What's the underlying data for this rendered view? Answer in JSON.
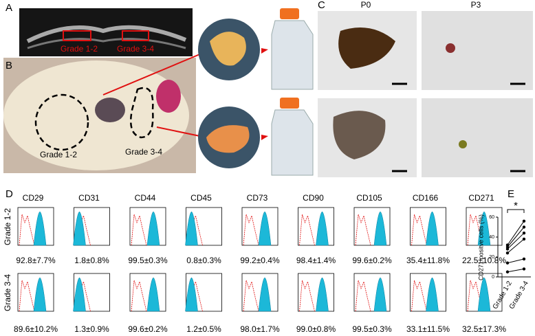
{
  "panel_a": {
    "letter": "A",
    "labels": [
      "Grade 1-2",
      "Grade 3-4"
    ]
  },
  "panel_b": {
    "letter": "B",
    "labels": [
      "Grade 1-2",
      "Grade 3-4"
    ]
  },
  "panel_c": {
    "letter": "C",
    "columns": [
      "P0",
      "P3"
    ]
  },
  "panel_d": {
    "letter": "D",
    "markers": [
      "CD29",
      "CD31",
      "CD44",
      "CD45",
      "CD73",
      "CD90",
      "CD105",
      "CD166",
      "CD271"
    ],
    "rows": [
      {
        "label": "Grade 1-2",
        "values": [
          "92.8±7.7%",
          "1.8±0.8%",
          "99.5±0.3%",
          "0.8±0.3%",
          "99.2±0.4%",
          "98.4±1.4%",
          "99.6±0.2%",
          "35.4±11.8%",
          "22.5±10.8%"
        ]
      },
      {
        "label": "Grade 3-4",
        "values": [
          "89.6±10.2%",
          "1.3±0.9%",
          "99.6±0.2%",
          "1.2±0.5%",
          "98.0±1.7%",
          "99.0±0.8%",
          "99.5±0.3%",
          "33.1±11.5%",
          "32.5±17.3%"
        ]
      }
    ]
  },
  "chart_data": {
    "type": "line",
    "panel_letter": "E",
    "ylabel": "CD271 positve cells (%)",
    "categories": [
      "Grade 1-2",
      "Grade 3-4"
    ],
    "series": [
      {
        "color": "#000000",
        "values": [
          5,
          8
        ]
      },
      {
        "color": "#000000",
        "values": [
          14,
          18
        ]
      },
      {
        "color": "#000000",
        "values": [
          24,
          38
        ]
      },
      {
        "color": "#000000",
        "values": [
          28,
          44
        ]
      },
      {
        "color": "#000000",
        "values": [
          30,
          50
        ]
      },
      {
        "color": "#000000",
        "values": [
          32,
          56
        ]
      }
    ],
    "ylim": [
      0,
      60
    ],
    "yticks": [
      0,
      20,
      40,
      60
    ],
    "annotation": "*"
  }
}
